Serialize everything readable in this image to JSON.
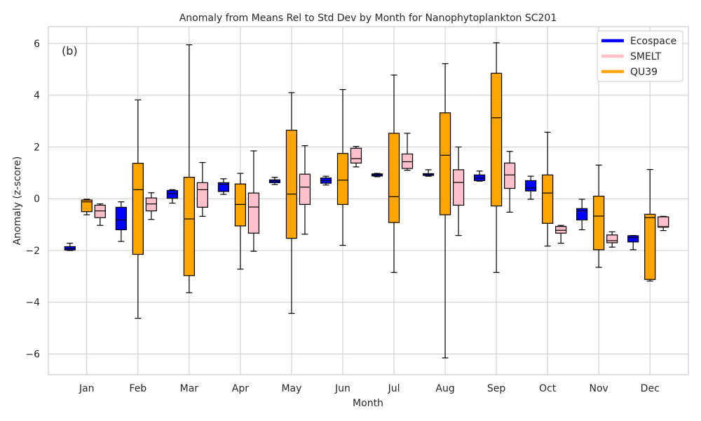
{
  "chart_data": {
    "type": "box",
    "title": "Anomaly from Means Rel to Std Dev by Month for Nanophytoplankton SC201",
    "panel_label": "(b)",
    "xlabel": "Month",
    "ylabel": "Anomaly (z-score)",
    "ylim": [
      -6.8,
      6.65
    ],
    "yticks": [
      -6,
      -4,
      -2,
      0,
      2,
      4,
      6
    ],
    "ytick_labels": [
      "−6",
      "−4",
      "−2",
      "0",
      "2",
      "4",
      "6"
    ],
    "categories": [
      "Jan",
      "Feb",
      "Mar",
      "Apr",
      "May",
      "Jun",
      "Jul",
      "Aug",
      "Sep",
      "Oct",
      "Nov",
      "Dec"
    ],
    "grid": true,
    "legend_position": "top-right",
    "series": [
      {
        "name": "Ecospace",
        "color": "#0000ff",
        "boxes": [
          {
            "min": -2.0,
            "q1": -1.98,
            "median": -1.93,
            "q3": -1.85,
            "max": -1.72
          },
          {
            "min": -1.65,
            "q1": -1.2,
            "median": -0.82,
            "q3": -0.33,
            "max": -0.12
          },
          {
            "min": -0.17,
            "q1": 0.02,
            "median": 0.2,
            "q3": 0.32,
            "max": 0.35
          },
          {
            "min": 0.17,
            "q1": 0.28,
            "median": 0.56,
            "q3": 0.62,
            "max": 0.77
          },
          {
            "min": 0.55,
            "q1": 0.62,
            "median": 0.68,
            "q3": 0.73,
            "max": 0.83
          },
          {
            "min": 0.53,
            "q1": 0.6,
            "median": 0.7,
            "q3": 0.8,
            "max": 0.87
          },
          {
            "min": 0.85,
            "q1": 0.88,
            "median": 0.93,
            "q3": 0.96,
            "max": 0.98
          },
          {
            "min": 0.87,
            "q1": 0.9,
            "median": 0.95,
            "q3": 0.97,
            "max": 1.12
          },
          {
            "min": 0.68,
            "q1": 0.7,
            "median": 0.8,
            "q3": 0.92,
            "max": 1.07
          },
          {
            "min": -0.02,
            "q1": 0.3,
            "median": 0.42,
            "q3": 0.7,
            "max": 0.87
          },
          {
            "min": -1.2,
            "q1": -0.82,
            "median": -0.47,
            "q3": -0.38,
            "max": -0.02
          },
          {
            "min": -1.97,
            "q1": -1.67,
            "median": -1.5,
            "q3": -1.43,
            "max": -1.42
          }
        ]
      },
      {
        "name": "QU39",
        "color": "#ffa500",
        "boxes": [
          {
            "min": -0.62,
            "q1": -0.5,
            "median": -0.12,
            "q3": -0.05,
            "max": -0.02
          },
          {
            "min": -4.62,
            "q1": -2.15,
            "median": 0.35,
            "q3": 1.37,
            "max": 3.82
          },
          {
            "min": -3.63,
            "q1": -2.97,
            "median": -0.78,
            "q3": 0.83,
            "max": 5.95
          },
          {
            "min": -2.72,
            "q1": -1.05,
            "median": -0.22,
            "q3": 0.57,
            "max": 0.98
          },
          {
            "min": -4.43,
            "q1": -1.53,
            "median": 0.18,
            "q3": 2.65,
            "max": 4.1
          },
          {
            "min": -1.8,
            "q1": -0.22,
            "median": 0.72,
            "q3": 1.75,
            "max": 4.22
          },
          {
            "min": -2.85,
            "q1": -0.92,
            "median": 0.08,
            "q3": 2.53,
            "max": 4.78
          },
          {
            "min": -6.15,
            "q1": -0.62,
            "median": 1.68,
            "q3": 3.32,
            "max": 5.22
          },
          {
            "min": -2.85,
            "q1": -0.28,
            "median": 3.13,
            "q3": 4.85,
            "max": 6.03
          },
          {
            "min": -1.83,
            "q1": -0.95,
            "median": 0.22,
            "q3": 0.92,
            "max": 2.57
          },
          {
            "min": -2.65,
            "q1": -1.97,
            "median": -0.67,
            "q3": 0.1,
            "max": 1.3
          },
          {
            "min": -3.18,
            "q1": -3.12,
            "median": -0.73,
            "q3": -0.6,
            "max": 1.13
          }
        ]
      },
      {
        "name": "SMELT",
        "color": "#ffc0cb",
        "boxes": [
          {
            "min": -1.03,
            "q1": -0.73,
            "median": -0.47,
            "q3": -0.25,
            "max": -0.2
          },
          {
            "min": -0.8,
            "q1": -0.47,
            "median": -0.2,
            "q3": 0.03,
            "max": 0.23
          },
          {
            "min": -0.68,
            "q1": -0.33,
            "median": 0.35,
            "q3": 0.62,
            "max": 1.4
          },
          {
            "min": -2.03,
            "q1": -1.33,
            "median": -0.32,
            "q3": 0.22,
            "max": 1.85
          },
          {
            "min": -1.37,
            "q1": -0.22,
            "median": 0.45,
            "q3": 0.95,
            "max": 2.05
          },
          {
            "min": 1.23,
            "q1": 1.38,
            "median": 1.55,
            "q3": 1.95,
            "max": 2.02
          },
          {
            "min": 1.1,
            "q1": 1.17,
            "median": 1.43,
            "q3": 1.73,
            "max": 2.53
          },
          {
            "min": -1.42,
            "q1": -0.25,
            "median": 0.63,
            "q3": 1.12,
            "max": 2.0
          },
          {
            "min": -0.52,
            "q1": 0.4,
            "median": 0.92,
            "q3": 1.38,
            "max": 1.83
          },
          {
            "min": -1.72,
            "q1": -1.33,
            "median": -1.22,
            "q3": -1.07,
            "max": -1.03
          },
          {
            "min": -1.87,
            "q1": -1.7,
            "median": -1.62,
            "q3": -1.4,
            "max": -1.28
          },
          {
            "min": -1.23,
            "q1": -1.1,
            "median": -1.08,
            "q3": -0.7,
            "max": -0.68
          }
        ]
      }
    ],
    "legend": [
      {
        "name": "Ecospace",
        "color": "#0000ff"
      },
      {
        "name": "SMELT",
        "color": "#ffc0cb"
      },
      {
        "name": "QU39",
        "color": "#ffa500"
      }
    ],
    "colors": {
      "grid": "#cccccc",
      "axis": "#cccccc",
      "whisker": "#000000"
    }
  }
}
